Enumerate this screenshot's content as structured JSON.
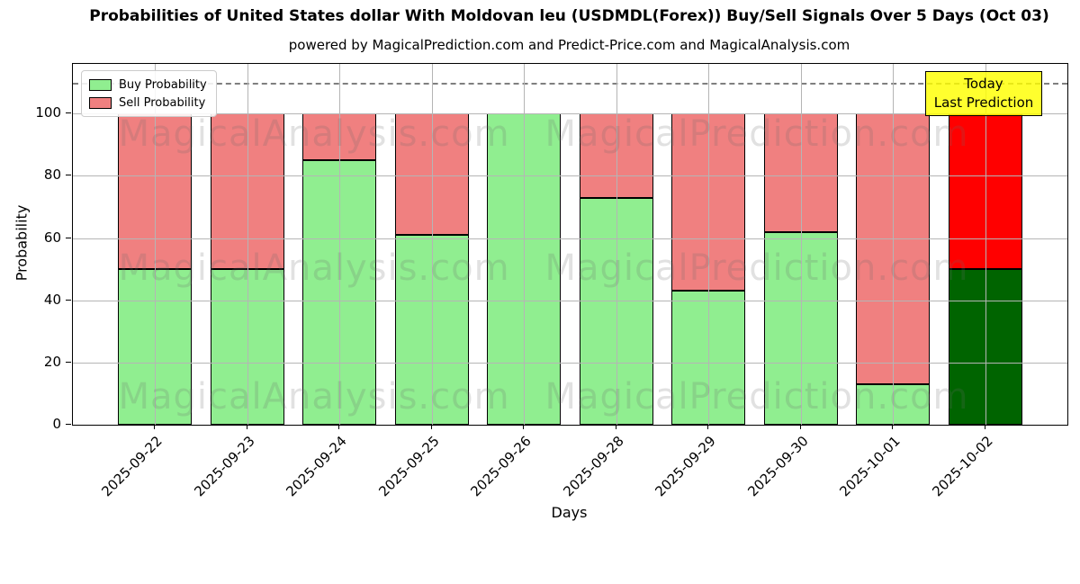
{
  "subtitle": "powered by MagicalPrediction.com and Predict-Price.com and MagicalAnalysis.com",
  "watermark": {
    "left_text": "MagicalAnalysis.com",
    "right_text": "MagicalPrediction.com"
  },
  "legend": {
    "items": [
      {
        "label": "Buy Probability",
        "color": "#90ee90"
      },
      {
        "label": "Sell Probability",
        "color": "#f08080"
      }
    ]
  },
  "annotation": {
    "line1": "Today",
    "line2": "Last Prediction",
    "bg_color": "#ffff00"
  },
  "chart_data": {
    "type": "bar",
    "stacked": true,
    "title": "Probabilities of United States dollar With Moldovan leu (USDMDL(Forex)) Buy/Sell Signals Over 5 Days (Oct 03)",
    "xlabel": "Days",
    "ylabel": "Probability",
    "categories": [
      "2025-09-22",
      "2025-09-23",
      "2025-09-24",
      "2025-09-25",
      "2025-09-26",
      "2025-09-28",
      "2025-09-29",
      "2025-09-30",
      "2025-10-01",
      "2025-10-02"
    ],
    "series": [
      {
        "name": "Buy Probability",
        "color": "#90ee90",
        "today_color": "#006400",
        "values": [
          50,
          50,
          85,
          61,
          100,
          73,
          43,
          62,
          13,
          50
        ]
      },
      {
        "name": "Sell Probability",
        "color": "#f08080",
        "today_color": "#ff0000",
        "values": [
          50,
          50,
          15,
          39,
          0,
          27,
          57,
          38,
          87,
          50
        ]
      }
    ],
    "yticks": [
      0,
      20,
      40,
      60,
      80,
      100
    ],
    "ylim": [
      0,
      116
    ],
    "dashed_hline": 110,
    "grid": true,
    "legend_position": "upper left",
    "today_bar_index": 9
  }
}
